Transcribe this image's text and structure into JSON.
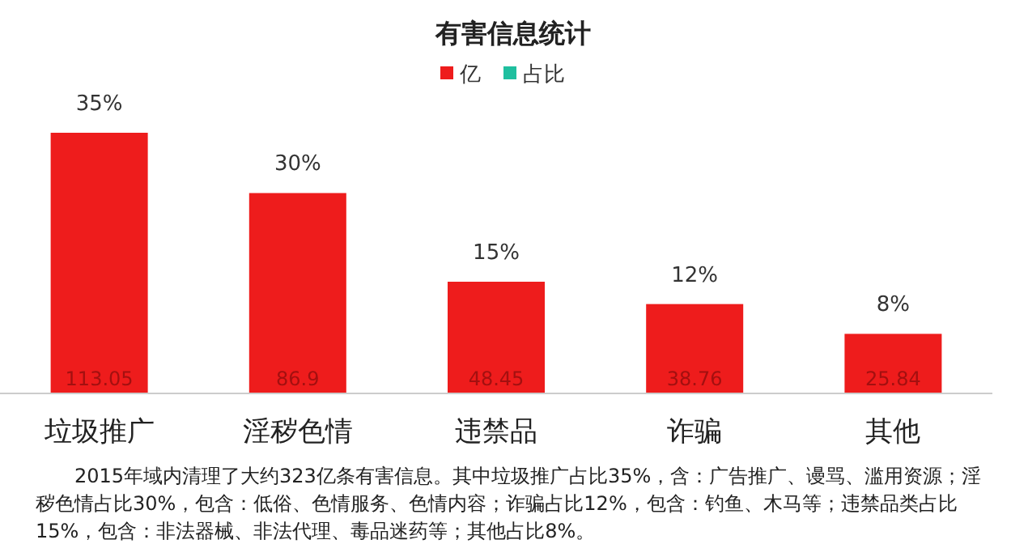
{
  "chart_data": {
    "type": "bar",
    "title": "有害信息统计",
    "categories": [
      "垃圾推广",
      "淫秽色情",
      "违禁品",
      "诈骗",
      "其他"
    ],
    "series": [
      {
        "name": "亿",
        "color": "#ee1c1c",
        "values": [
          113.05,
          86.9,
          48.45,
          38.76,
          25.84
        ]
      },
      {
        "name": "占比",
        "color": "#1fbf9f",
        "values": [
          null,
          null,
          null,
          null,
          null
        ]
      }
    ],
    "data_labels": true,
    "legend": "top",
    "annotations": [
      {
        "text": "35%",
        "x": "垃圾推广",
        "y": 113.05
      },
      {
        "text": "30%",
        "x": "淫秽色情",
        "y": 86.9
      },
      {
        "text": "15%",
        "x": "违禁品",
        "y": 48.45
      },
      {
        "text": "12%",
        "x": "诈骗",
        "y": 38.76
      },
      {
        "text": "8%",
        "x": "其他",
        "y": 25.84
      },
      "2015年域内清理了大约323亿条有害信息。其中垃圾推广占比35%，含：广告推广、谩骂、滥用资源；淫秽色情占比30%，包含：低俗、色情服务、色情内容；诈骗占比12%，包含：钓鱼、木马等；违禁品类占比15%，包含：非法器械、非法代理、毒品迷药等；其他占比8%。"
    ]
  }
}
